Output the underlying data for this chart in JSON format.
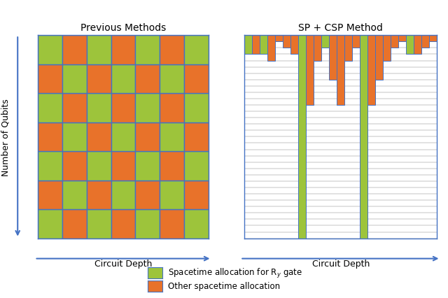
{
  "title_left": "Previous Methods",
  "title_right": "SP + CSP Method",
  "xlabel": "Circuit Depth",
  "ylabel": "Number of Qubits",
  "color_green": "#9DC43B",
  "color_orange": "#E8722A",
  "color_blue": "#4472C4",
  "color_white": "#FFFFFF",
  "grid_n": 7,
  "legend_green": "Spacetime allocation for R$_y$ gate",
  "legend_orange": "Other spacetime allocation",
  "bg_color": "#FFFFFF",
  "n_rows": 32,
  "col_groups": [
    [
      0,
      1,
      "green",
      3
    ],
    [
      1,
      1,
      "orange",
      3
    ],
    [
      2,
      1,
      "green",
      3
    ],
    [
      3,
      1,
      "orange",
      4
    ],
    [
      4,
      1,
      "orange",
      1
    ],
    [
      5,
      1,
      "orange",
      2
    ],
    [
      6,
      1,
      "orange",
      3
    ],
    [
      7,
      1,
      "green",
      32
    ],
    [
      8,
      1,
      "orange",
      11
    ],
    [
      9,
      1,
      "orange",
      4
    ],
    [
      10,
      1,
      "green",
      2
    ],
    [
      11,
      1,
      "orange",
      7
    ],
    [
      12,
      1,
      "orange",
      11
    ],
    [
      13,
      1,
      "orange",
      4
    ],
    [
      14,
      1,
      "orange",
      2
    ],
    [
      15,
      1,
      "green",
      32
    ],
    [
      16,
      1,
      "orange",
      11
    ],
    [
      17,
      1,
      "orange",
      7
    ],
    [
      18,
      1,
      "orange",
      4
    ],
    [
      19,
      1,
      "orange",
      2
    ],
    [
      20,
      1,
      "orange",
      1
    ],
    [
      21,
      1,
      "green",
      3
    ],
    [
      22,
      1,
      "orange",
      3
    ],
    [
      23,
      1,
      "orange",
      2
    ],
    [
      24,
      1,
      "orange",
      1
    ]
  ]
}
